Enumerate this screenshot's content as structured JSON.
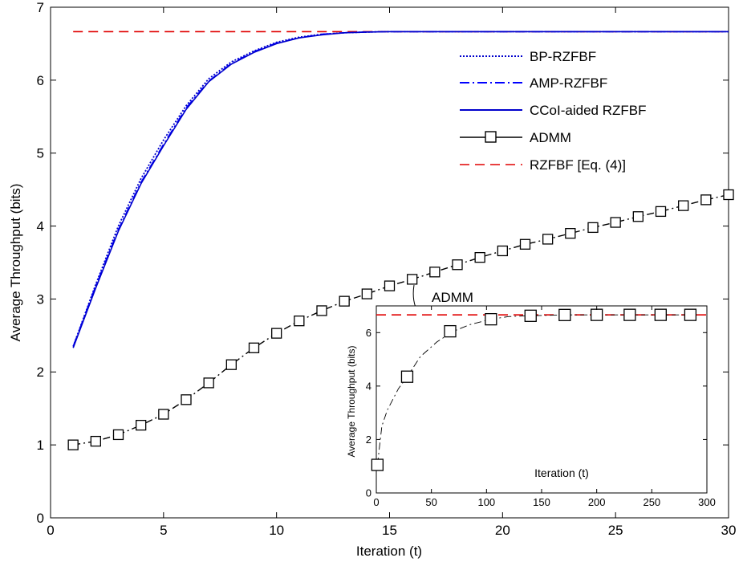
{
  "chart_data": [
    {
      "type": "line",
      "title": "",
      "xlabel": "Iteration (t)",
      "ylabel": "Average Throughput (bits)",
      "xlim": [
        0,
        30
      ],
      "ylim": [
        0,
        7
      ],
      "xticks": [
        0,
        5,
        10,
        15,
        20,
        25,
        30
      ],
      "yticks": [
        0,
        1,
        2,
        3,
        4,
        5,
        6,
        7
      ],
      "grid": false,
      "legend_position": "top-right",
      "series": [
        {
          "name": "BP-RZFBF",
          "color": "#0000cc",
          "style": "dotted",
          "x": [
            1,
            2,
            3,
            4,
            5,
            6,
            7,
            8,
            9,
            10,
            11,
            12,
            13,
            14,
            15,
            20,
            25,
            30
          ],
          "y": [
            2.35,
            3.2,
            4.0,
            4.65,
            5.18,
            5.65,
            6.02,
            6.25,
            6.4,
            6.52,
            6.59,
            6.63,
            6.65,
            6.66,
            6.665,
            6.665,
            6.665,
            6.665
          ]
        },
        {
          "name": "AMP-RZFBF",
          "color": "#0000ff",
          "style": "dashdot",
          "x": [
            1,
            2,
            3,
            4,
            5,
            6,
            7,
            8,
            9,
            10,
            11,
            12,
            13,
            14,
            15,
            20,
            25,
            30
          ],
          "y": [
            2.35,
            3.18,
            3.95,
            4.6,
            5.12,
            5.62,
            5.99,
            6.23,
            6.39,
            6.51,
            6.58,
            6.63,
            6.65,
            6.66,
            6.665,
            6.665,
            6.665,
            6.665
          ]
        },
        {
          "name": "CCoI-aided RZFBF",
          "color": "#0000cc",
          "style": "solid",
          "x": [
            1,
            2,
            3,
            4,
            5,
            6,
            7,
            8,
            9,
            10,
            11,
            12,
            13,
            14,
            15,
            20,
            25,
            30
          ],
          "y": [
            2.33,
            3.15,
            3.93,
            4.58,
            5.1,
            5.6,
            5.98,
            6.22,
            6.38,
            6.5,
            6.58,
            6.62,
            6.65,
            6.66,
            6.665,
            6.665,
            6.665,
            6.665
          ]
        },
        {
          "name": "ADMM",
          "color": "#000000",
          "style": "dashdot-square",
          "x": [
            1,
            2,
            3,
            4,
            5,
            6,
            7,
            8,
            9,
            10,
            11,
            12,
            13,
            14,
            15,
            16,
            17,
            18,
            19,
            20,
            21,
            22,
            23,
            24,
            25,
            26,
            27,
            28,
            29,
            30
          ],
          "y": [
            1.0,
            1.05,
            1.14,
            1.27,
            1.42,
            1.62,
            1.85,
            2.1,
            2.33,
            2.53,
            2.7,
            2.84,
            2.97,
            3.07,
            3.18,
            3.27,
            3.37,
            3.47,
            3.57,
            3.66,
            3.75,
            3.82,
            3.9,
            3.98,
            4.05,
            4.13,
            4.2,
            4.28,
            4.36,
            4.43
          ]
        },
        {
          "name": "RZFBF [Eq. (4)]",
          "color": "#e00000",
          "style": "dashed",
          "x": [
            1,
            30
          ],
          "y": [
            6.665,
            6.665
          ]
        }
      ],
      "annotation": "ADMM"
    },
    {
      "type": "line",
      "title": "",
      "xlabel": "Iteration (t)",
      "ylabel": "Average Throughput (bits)",
      "xlim": [
        0,
        300
      ],
      "ylim": [
        0,
        7
      ],
      "xticks": [
        0,
        50,
        100,
        150,
        200,
        250,
        300
      ],
      "yticks": [
        0,
        2,
        4,
        6
      ],
      "grid": false,
      "series": [
        {
          "color": "#000000",
          "style": "dashdot-square",
          "x": [
            1,
            5,
            10,
            20,
            28,
            40,
            55,
            70,
            85,
            104,
            120,
            140,
            170,
            200,
            230,
            260,
            285
          ],
          "y": [
            1.05,
            2.5,
            3.1,
            3.9,
            4.35,
            5.1,
            5.65,
            6.05,
            6.3,
            6.5,
            6.6,
            6.63,
            6.665,
            6.665,
            6.665,
            6.665,
            6.665
          ],
          "markers_x": [
            1,
            28,
            67,
            104,
            140,
            171,
            200,
            230,
            258,
            285
          ],
          "markers_y": [
            1.05,
            4.35,
            6.05,
            6.5,
            6.63,
            6.66,
            6.665,
            6.665,
            6.665,
            6.665
          ]
        },
        {
          "color": "#e00000",
          "style": "dashed",
          "x": [
            0,
            300
          ],
          "y": [
            6.665,
            6.665
          ]
        }
      ]
    }
  ]
}
